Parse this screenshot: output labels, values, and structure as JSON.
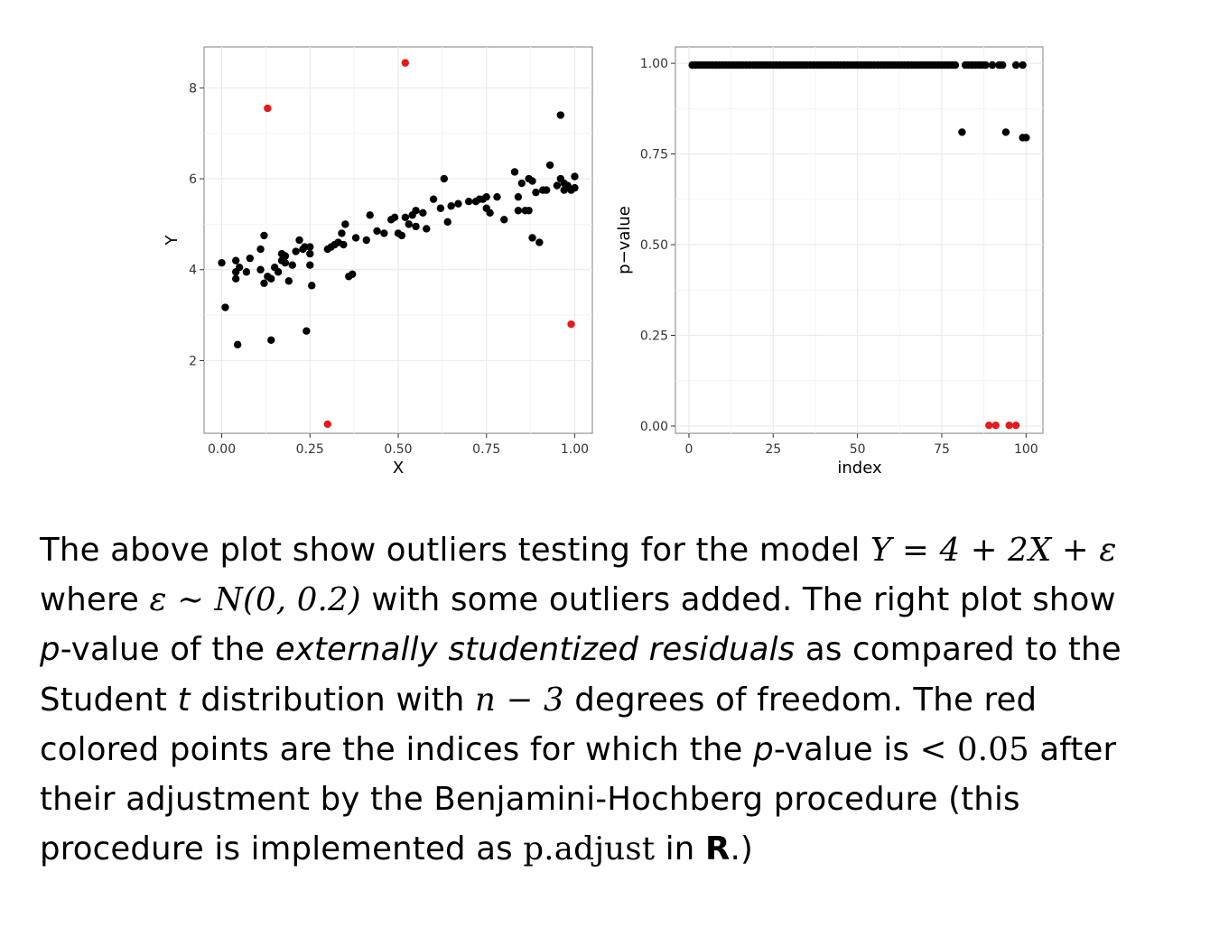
{
  "colors": {
    "normal": "#000000",
    "outlier": "#e41a1c",
    "grid": "#ebebeb",
    "panel_border": "#7f7f7f"
  },
  "chart_data": [
    {
      "type": "scatter",
      "xlabel": "X",
      "ylabel": "Y",
      "xlim": [
        -0.05,
        1.05
      ],
      "ylim": [
        0.4,
        8.9
      ],
      "xticks": [
        0.0,
        0.25,
        0.5,
        0.75,
        1.0
      ],
      "xtick_labels": [
        "0.00",
        "0.25",
        "0.50",
        "0.75",
        "1.00"
      ],
      "yticks": [
        2,
        4,
        6,
        8
      ],
      "ytick_labels": [
        "2",
        "4",
        "6",
        "8"
      ],
      "grid": true,
      "series": [
        {
          "points": [
            [
              0.0,
              4.15
            ],
            [
              0.01,
              3.17
            ],
            [
              0.04,
              4.2
            ],
            [
              0.04,
              3.95
            ],
            [
              0.045,
              2.35
            ],
            [
              0.04,
              3.8
            ],
            [
              0.05,
              4.05
            ],
            [
              0.07,
              3.95
            ],
            [
              0.08,
              4.25
            ],
            [
              0.11,
              4.45
            ],
            [
              0.11,
              4.0
            ],
            [
              0.12,
              4.75
            ],
            [
              0.12,
              3.7
            ],
            [
              0.13,
              3.85
            ],
            [
              0.14,
              2.45
            ],
            [
              0.14,
              3.8
            ],
            [
              0.15,
              4.05
            ],
            [
              0.16,
              3.95
            ],
            [
              0.17,
              4.35
            ],
            [
              0.17,
              4.2
            ],
            [
              0.18,
              4.3
            ],
            [
              0.18,
              4.15
            ],
            [
              0.19,
              3.75
            ],
            [
              0.2,
              4.1
            ],
            [
              0.21,
              4.4
            ],
            [
              0.22,
              4.65
            ],
            [
              0.23,
              4.45
            ],
            [
              0.235,
              4.5
            ],
            [
              0.24,
              2.65
            ],
            [
              0.25,
              4.5
            ],
            [
              0.25,
              4.35
            ],
            [
              0.25,
              4.1
            ],
            [
              0.255,
              3.65
            ],
            [
              0.3,
              4.45
            ],
            [
              0.31,
              4.5
            ],
            [
              0.32,
              4.55
            ],
            [
              0.33,
              4.6
            ],
            [
              0.34,
              4.8
            ],
            [
              0.345,
              4.55
            ],
            [
              0.35,
              5.0
            ],
            [
              0.36,
              3.85
            ],
            [
              0.37,
              3.9
            ],
            [
              0.38,
              4.7
            ],
            [
              0.41,
              4.65
            ],
            [
              0.42,
              5.2
            ],
            [
              0.44,
              4.85
            ],
            [
              0.46,
              4.8
            ],
            [
              0.48,
              5.1
            ],
            [
              0.49,
              5.15
            ],
            [
              0.5,
              4.8
            ],
            [
              0.51,
              4.75
            ],
            [
              0.52,
              5.15
            ],
            [
              0.53,
              5.0
            ],
            [
              0.54,
              5.2
            ],
            [
              0.55,
              5.3
            ],
            [
              0.55,
              4.95
            ],
            [
              0.57,
              5.25
            ],
            [
              0.58,
              4.9
            ],
            [
              0.6,
              5.55
            ],
            [
              0.62,
              5.35
            ],
            [
              0.63,
              6.0
            ],
            [
              0.64,
              5.05
            ],
            [
              0.65,
              5.4
            ],
            [
              0.67,
              5.45
            ],
            [
              0.7,
              5.5
            ],
            [
              0.72,
              5.5
            ],
            [
              0.73,
              5.55
            ],
            [
              0.74,
              5.55
            ],
            [
              0.75,
              5.6
            ],
            [
              0.75,
              5.35
            ],
            [
              0.76,
              5.25
            ],
            [
              0.78,
              5.6
            ],
            [
              0.8,
              5.1
            ],
            [
              0.83,
              6.15
            ],
            [
              0.84,
              5.6
            ],
            [
              0.84,
              5.3
            ],
            [
              0.85,
              5.9
            ],
            [
              0.86,
              5.3
            ],
            [
              0.87,
              6.0
            ],
            [
              0.87,
              5.3
            ],
            [
              0.88,
              4.7
            ],
            [
              0.88,
              5.95
            ],
            [
              0.89,
              5.7
            ],
            [
              0.9,
              4.6
            ],
            [
              0.91,
              5.75
            ],
            [
              0.92,
              5.75
            ],
            [
              0.93,
              6.3
            ],
            [
              0.95,
              5.85
            ],
            [
              0.96,
              6.0
            ],
            [
              0.96,
              7.4
            ],
            [
              0.97,
              5.75
            ],
            [
              0.97,
              5.9
            ],
            [
              0.98,
              5.85
            ],
            [
              0.99,
              5.75
            ],
            [
              1.0,
              6.05
            ],
            [
              1.0,
              5.8
            ]
          ]
        },
        {
          "outlier": true,
          "points": [
            [
              0.13,
              7.55
            ],
            [
              0.3,
              0.6
            ],
            [
              0.52,
              8.55
            ],
            [
              0.99,
              2.8
            ]
          ]
        }
      ]
    },
    {
      "type": "scatter",
      "xlabel": "index",
      "ylabel": "p−value",
      "xlim": [
        -4,
        105
      ],
      "ylim": [
        -0.02,
        1.045
      ],
      "xticks": [
        0,
        25,
        50,
        75,
        100
      ],
      "xtick_labels": [
        "0",
        "25",
        "50",
        "75",
        "100"
      ],
      "yticks": [
        0,
        0.25,
        0.5,
        0.75,
        1.0
      ],
      "ytick_labels": [
        "0.00",
        "0.25",
        "0.50",
        "0.75",
        "1.00"
      ],
      "grid": true,
      "series": [
        {
          "points": [
            [
              1,
              0.995
            ],
            [
              2,
              0.995
            ],
            [
              3,
              0.995
            ],
            [
              4,
              0.995
            ],
            [
              5,
              0.995
            ],
            [
              6,
              0.995
            ],
            [
              7,
              0.995
            ],
            [
              8,
              0.995
            ],
            [
              9,
              0.995
            ],
            [
              10,
              0.995
            ],
            [
              11,
              0.995
            ],
            [
              12,
              0.995
            ],
            [
              13,
              0.995
            ],
            [
              14,
              0.995
            ],
            [
              15,
              0.995
            ],
            [
              16,
              0.995
            ],
            [
              17,
              0.995
            ],
            [
              18,
              0.995
            ],
            [
              19,
              0.995
            ],
            [
              20,
              0.995
            ],
            [
              21,
              0.995
            ],
            [
              22,
              0.995
            ],
            [
              23,
              0.995
            ],
            [
              24,
              0.995
            ],
            [
              25,
              0.995
            ],
            [
              26,
              0.995
            ],
            [
              27,
              0.995
            ],
            [
              28,
              0.995
            ],
            [
              29,
              0.995
            ],
            [
              30,
              0.995
            ],
            [
              31,
              0.995
            ],
            [
              32,
              0.995
            ],
            [
              33,
              0.995
            ],
            [
              34,
              0.995
            ],
            [
              35,
              0.995
            ],
            [
              36,
              0.995
            ],
            [
              37,
              0.995
            ],
            [
              38,
              0.995
            ],
            [
              39,
              0.995
            ],
            [
              40,
              0.995
            ],
            [
              41,
              0.995
            ],
            [
              42,
              0.995
            ],
            [
              43,
              0.995
            ],
            [
              44,
              0.995
            ],
            [
              45,
              0.995
            ],
            [
              46,
              0.995
            ],
            [
              47,
              0.995
            ],
            [
              48,
              0.995
            ],
            [
              49,
              0.995
            ],
            [
              50,
              0.995
            ],
            [
              51,
              0.995
            ],
            [
              52,
              0.995
            ],
            [
              53,
              0.995
            ],
            [
              54,
              0.995
            ],
            [
              55,
              0.995
            ],
            [
              56,
              0.995
            ],
            [
              57,
              0.995
            ],
            [
              58,
              0.995
            ],
            [
              59,
              0.995
            ],
            [
              60,
              0.995
            ],
            [
              61,
              0.995
            ],
            [
              62,
              0.995
            ],
            [
              63,
              0.995
            ],
            [
              64,
              0.995
            ],
            [
              65,
              0.995
            ],
            [
              66,
              0.995
            ],
            [
              67,
              0.995
            ],
            [
              68,
              0.995
            ],
            [
              69,
              0.995
            ],
            [
              70,
              0.995
            ],
            [
              71,
              0.995
            ],
            [
              72,
              0.995
            ],
            [
              73,
              0.995
            ],
            [
              74,
              0.995
            ],
            [
              75,
              0.995
            ],
            [
              76,
              0.995
            ],
            [
              77,
              0.995
            ],
            [
              78,
              0.995
            ],
            [
              79,
              0.995
            ],
            [
              81,
              0.81
            ],
            [
              82,
              0.995
            ],
            [
              83,
              0.995
            ],
            [
              84,
              0.995
            ],
            [
              85,
              0.995
            ],
            [
              86,
              0.995
            ],
            [
              87,
              0.995
            ],
            [
              88,
              0.995
            ],
            [
              90,
              0.995
            ],
            [
              92,
              0.995
            ],
            [
              93,
              0.995
            ],
            [
              94,
              0.81
            ],
            [
              97,
              0.995
            ],
            [
              99,
              0.995
            ],
            [
              99,
              0.795
            ],
            [
              100,
              0.795
            ]
          ]
        },
        {
          "outlier": true,
          "points": [
            [
              89,
              0.002
            ],
            [
              91,
              0.002
            ],
            [
              95,
              0.002
            ],
            [
              97,
              0.002
            ]
          ]
        }
      ]
    }
  ],
  "caption": {
    "l1": {
      "a": "The above plot show outliers testing for the model ",
      "m": "Y = 4 + 2X + ε"
    },
    "l2": {
      "a": "where ",
      "m": "ε ∼ N(0, 0.2)",
      "b": " with some outliers added.  The right plot show"
    },
    "l3": {
      "p": "p",
      "a": "-value of the ",
      "em": "externally studentized residuals",
      "b": " as compared to the"
    },
    "l4": {
      "a": "Student ",
      "t": "t",
      "b": " distribution with ",
      "m": "n − 3",
      "c": " degrees of freedom.  The red"
    },
    "l5": {
      "a": "colored points are the indices for which the ",
      "p": "p",
      "b": "-value is ",
      "m": "< 0.05",
      "c": " after"
    },
    "l6": {
      "a": "their adjustment by the Benjamini-Hochberg procedure (this"
    },
    "l7": {
      "a": "procedure is implemented as ",
      "code": "p.adjust",
      "b": " in ",
      "r": "R",
      "c": ".)"
    }
  }
}
